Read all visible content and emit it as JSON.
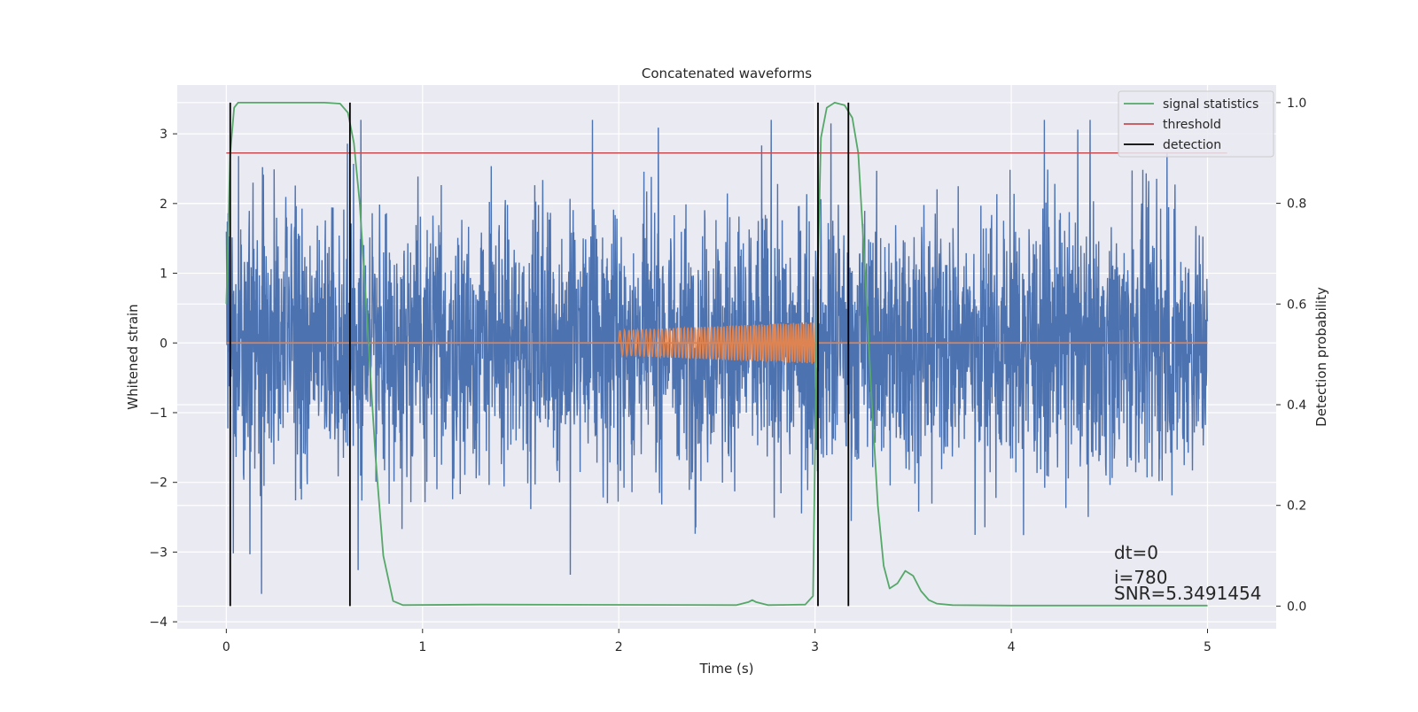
{
  "chart_data": {
    "type": "line",
    "title": "Concatenated waveforms",
    "xlabel": "Time (s)",
    "ylabel": "Whitened strain",
    "y2label": "Detection probability",
    "xlim": [
      -0.25,
      5.35
    ],
    "ylim": [
      -4.1,
      3.7
    ],
    "y2lim": [
      -0.045,
      1.035
    ],
    "xticks": [
      0,
      1,
      2,
      3,
      4,
      5
    ],
    "yticks": [
      -4,
      -3,
      -2,
      -1,
      0,
      1,
      2,
      3
    ],
    "y2ticks": [
      0.0,
      0.2,
      0.4,
      0.6,
      0.8,
      1.0
    ],
    "xtick_labels": [
      "0",
      "1",
      "2",
      "3",
      "4",
      "5"
    ],
    "ytick_labels": [
      "−4",
      "−3",
      "−2",
      "−1",
      "0",
      "1",
      "2",
      "3"
    ],
    "y2tick_labels": [
      "0.0",
      "0.2",
      "0.4",
      "0.6",
      "0.8",
      "1.0"
    ],
    "grid": true,
    "legend_position": "top-right",
    "legend": [
      {
        "label": "signal statistics",
        "color": "#55a868"
      },
      {
        "label": "threshold",
        "color": "#c44e52"
      },
      {
        "label": "detection",
        "color": "#000000"
      }
    ],
    "noise": {
      "x_range": [
        0,
        5
      ],
      "amplitude_typical": 1.0,
      "min": -3.6,
      "max": 3.2,
      "color": "#4c72b0"
    },
    "injected_signal": {
      "x_range": [
        2,
        3
      ],
      "amplitude_start": 0.18,
      "amplitude_end": 0.3,
      "baseline_x_range": [
        0,
        5
      ],
      "color": "#dd8452"
    },
    "threshold": {
      "value": 0.9,
      "x_range": [
        0.0,
        5.1
      ],
      "color": "#c44e52"
    },
    "signal_statistics": {
      "color": "#55a868",
      "x": [
        0.0,
        0.02,
        0.04,
        0.06,
        0.1,
        0.2,
        0.5,
        0.58,
        0.62,
        0.65,
        0.68,
        0.72,
        0.76,
        0.8,
        0.85,
        0.9,
        1.3,
        2.6,
        2.66,
        2.68,
        2.7,
        2.76,
        2.95,
        2.99,
        3.01,
        3.03,
        3.06,
        3.1,
        3.15,
        3.19,
        3.22,
        3.25,
        3.29,
        3.32,
        3.35,
        3.38,
        3.42,
        3.46,
        3.5,
        3.54,
        3.58,
        3.62,
        3.7,
        4.0,
        5.0
      ],
      "values": [
        0.6,
        0.9,
        0.99,
        1.0,
        1.0,
        1.0,
        1.0,
        0.998,
        0.98,
        0.92,
        0.8,
        0.55,
        0.3,
        0.1,
        0.01,
        0.002,
        0.003,
        0.002,
        0.008,
        0.012,
        0.008,
        0.002,
        0.003,
        0.02,
        0.6,
        0.93,
        0.99,
        1.0,
        0.995,
        0.97,
        0.9,
        0.7,
        0.4,
        0.2,
        0.08,
        0.035,
        0.045,
        0.07,
        0.06,
        0.03,
        0.012,
        0.005,
        0.002,
        0.001,
        0.001
      ]
    },
    "detections": [
      0.02,
      0.63,
      3.015,
      3.17
    ],
    "detection_y_range": [
      0.0,
      1.0
    ],
    "annotations": [
      "dt=0",
      "i=780",
      "SNR=5.3491454"
    ]
  }
}
